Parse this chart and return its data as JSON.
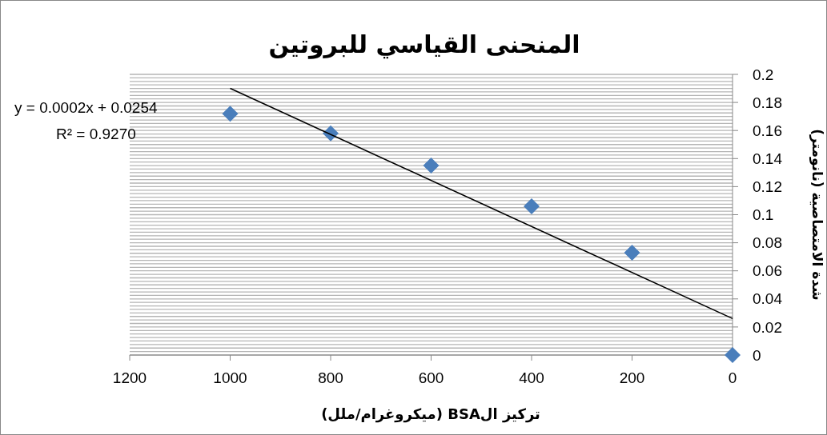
{
  "chart_data": {
    "type": "scatter",
    "title": "المنحنى القياسي للبروتين",
    "xlabel": "تركيز الBSA (ميكروغرام/ملل)",
    "ylabel": "شدة الامتصاصية (نانومتر)",
    "annotations": [
      "y = 0.0002x + 0.0254",
      "R² = 0.9270"
    ],
    "xlim": [
      1200,
      0
    ],
    "xticks": [
      1200,
      1000,
      800,
      600,
      400,
      200,
      0
    ],
    "ylim": [
      0,
      0.2
    ],
    "yticks": [
      0,
      {
        "value": 0.0025,
        "label": null
      },
      {
        "value": 0.005,
        "label": null
      },
      {
        "value": 0.0075,
        "label": null
      },
      {
        "value": 0.01,
        "label": null
      },
      {
        "value": 0.0125,
        "label": null
      },
      {
        "value": 0.015,
        "label": null
      },
      {
        "value": 0.0175,
        "label": null
      },
      0.02,
      {
        "value": 0.0225,
        "label": null
      },
      {
        "value": 0.025,
        "label": null
      },
      {
        "value": 0.0275,
        "label": null
      },
      {
        "value": 0.03,
        "label": null
      },
      {
        "value": 0.0325,
        "label": null
      },
      {
        "value": 0.035,
        "label": null
      },
      {
        "value": 0.0375,
        "label": null
      },
      0.04,
      {
        "value": 0.0425,
        "label": null
      },
      {
        "value": 0.045,
        "label": null
      },
      {
        "value": 0.0475,
        "label": null
      },
      {
        "value": 0.05,
        "label": null
      },
      {
        "value": 0.0525,
        "label": null
      },
      {
        "value": 0.055,
        "label": null
      },
      {
        "value": 0.0575,
        "label": null
      },
      0.06,
      {
        "value": 0.0625,
        "label": null
      },
      {
        "value": 0.065,
        "label": null
      },
      {
        "value": 0.0675,
        "label": null
      },
      {
        "value": 0.07,
        "label": null
      },
      {
        "value": 0.0725,
        "label": null
      },
      {
        "value": 0.075,
        "label": null
      },
      {
        "value": 0.0775,
        "label": null
      },
      0.08,
      {
        "value": 0.0825,
        "label": null
      },
      {
        "value": 0.085,
        "label": null
      },
      {
        "value": 0.0875,
        "label": null
      },
      {
        "value": 0.09,
        "label": null
      },
      {
        "value": 0.0925,
        "label": null
      },
      {
        "value": 0.095,
        "label": null
      },
      {
        "value": 0.0975,
        "label": null
      },
      0.1,
      {
        "value": 0.1025,
        "label": null
      },
      {
        "value": 0.105,
        "label": null
      },
      {
        "value": 0.1075,
        "label": null
      },
      {
        "value": 0.11,
        "label": null
      },
      {
        "value": 0.1125,
        "label": null
      },
      {
        "value": 0.115,
        "label": null
      },
      {
        "value": 0.1175,
        "label": null
      },
      0.12,
      {
        "value": 0.1225,
        "label": null
      },
      {
        "value": 0.125,
        "label": null
      },
      {
        "value": 0.1275,
        "label": null
      },
      {
        "value": 0.13,
        "label": null
      },
      {
        "value": 0.1325,
        "label": null
      },
      {
        "value": 0.135,
        "label": null
      },
      {
        "value": 0.1375,
        "label": null
      },
      0.14,
      {
        "value": 0.1425,
        "label": null
      },
      {
        "value": 0.145,
        "label": null
      },
      {
        "value": 0.1475,
        "label": null
      },
      {
        "value": 0.15,
        "label": null
      },
      {
        "value": 0.1525,
        "label": null
      },
      {
        "value": 0.155,
        "label": null
      },
      {
        "value": 0.1575,
        "label": null
      },
      0.16,
      {
        "value": 0.1625,
        "label": null
      },
      {
        "value": 0.165,
        "label": null
      },
      {
        "value": 0.1675,
        "label": null
      },
      {
        "value": 0.17,
        "label": null
      },
      {
        "value": 0.1725,
        "label": null
      },
      {
        "value": 0.175,
        "label": null
      },
      {
        "value": 0.1775,
        "label": null
      },
      0.18,
      {
        "value": 0.1825,
        "label": null
      },
      {
        "value": 0.185,
        "label": null
      },
      {
        "value": 0.1875,
        "label": null
      },
      {
        "value": 0.19,
        "label": null
      },
      {
        "value": 0.1925,
        "label": null
      },
      {
        "value": 0.195,
        "label": null
      },
      {
        "value": 0.1975,
        "label": null
      },
      0.2
    ],
    "grid": "y",
    "series": [
      {
        "color": "#4a7ebb",
        "marker": "diamond",
        "x": [
          1000,
          800,
          600,
          400,
          200,
          0
        ],
        "values": [
          0.172,
          0.158,
          0.135,
          0.106,
          0.073,
          0
        ]
      },
      {
        "type": "line",
        "color": "#000000",
        "marker": "none",
        "line_style": "solid",
        "x": [
          1000,
          0
        ],
        "values": [
          0.19,
          0.026
        ]
      }
    ]
  }
}
